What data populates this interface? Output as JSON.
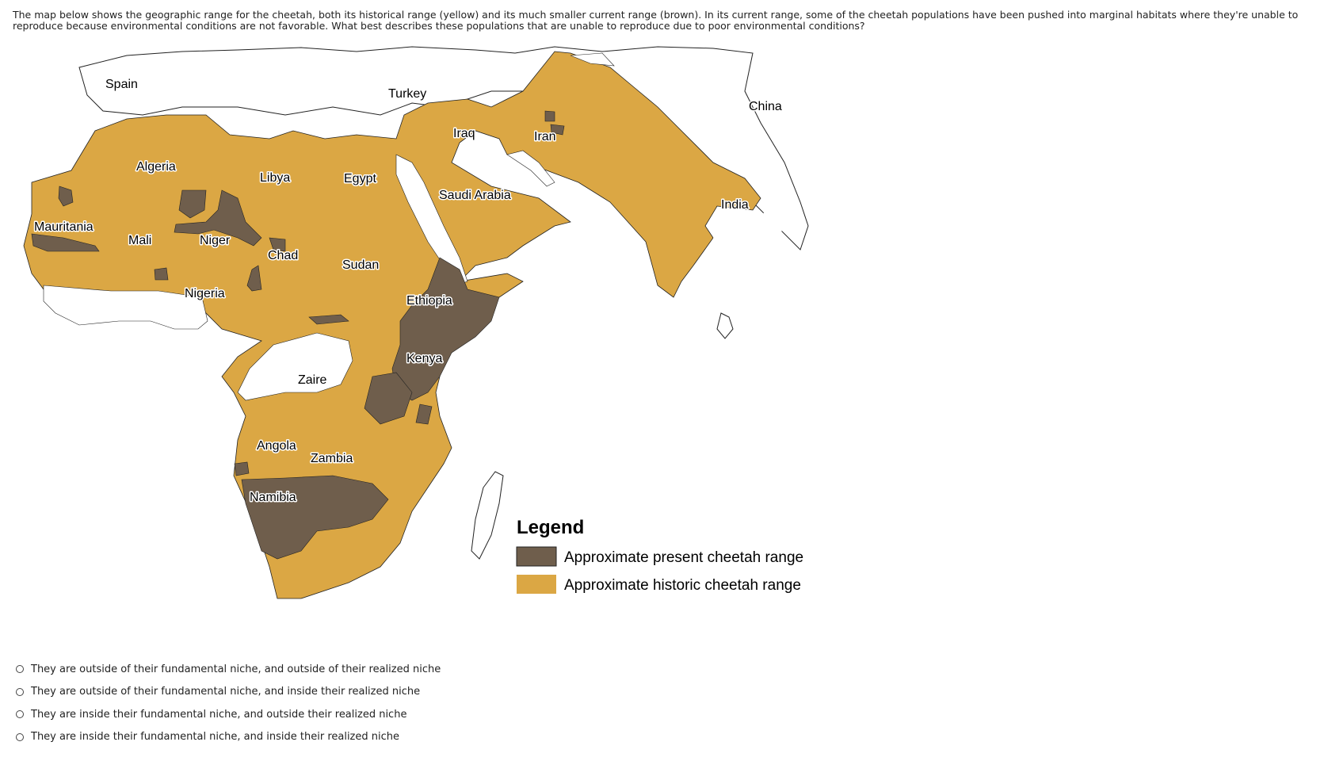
{
  "question": {
    "text": "The map below shows the geographic range for the cheetah, both its historical range (yellow) and its much smaller current range (brown). In its current range, some of the cheetah populations have been pushed into marginal habitats where they're unable to reproduce because environmental conditions are not favorable. What best describes these populations that are unable to reproduce due to poor environmental conditions?"
  },
  "map": {
    "colors": {
      "historic": "#dba744",
      "present": "#6f5e4c",
      "outline": "#222222",
      "background": "#ffffff"
    },
    "labels": {
      "spain": "Spain",
      "turkey": "Turkey",
      "china": "China",
      "iraq": "Iraq",
      "iran": "Iran",
      "algeria": "Algeria",
      "libya": "Libya",
      "egypt": "Egypt",
      "saudi_arabia": "Saudi Arabia",
      "india": "India",
      "mauritania": "Mauritania",
      "mali": "Mali",
      "niger": "Niger",
      "chad": "Chad",
      "sudan": "Sudan",
      "nigeria": "Nigeria",
      "ethiopia": "Ethiopia",
      "kenya": "Kenya",
      "zaire": "Zaire",
      "angola": "Angola",
      "zambia": "Zambia",
      "namibia": "Namibia"
    },
    "legend": {
      "title": "Legend",
      "present": "Approximate present cheetah range",
      "historic": "Approximate historic cheetah range"
    }
  },
  "options": [
    {
      "label": "They are outside of their fundamental niche, and outside of their realized niche"
    },
    {
      "label": "They are outside of their fundamental niche, and inside their realized niche"
    },
    {
      "label": "They are inside their fundamental niche, and outside their realized niche"
    },
    {
      "label": "They are inside their fundamental niche, and inside their realized niche"
    }
  ]
}
